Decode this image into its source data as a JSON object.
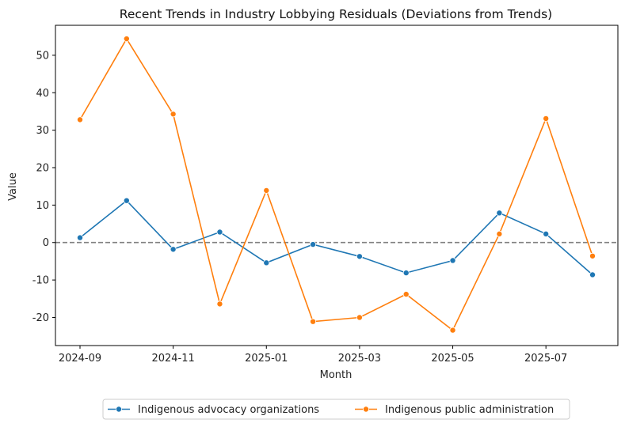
{
  "chart_data": {
    "type": "line",
    "title": "Recent Trends in Industry Lobbying Residuals (Deviations from Trends)",
    "xlabel": "Month",
    "ylabel": "Value",
    "x": [
      "2024-09",
      "2024-10",
      "2024-11",
      "2024-12",
      "2025-01",
      "2025-02",
      "2025-03",
      "2025-04",
      "2025-05",
      "2025-06",
      "2025-07",
      "2025-08"
    ],
    "xticks": [
      "2024-09",
      "2024-11",
      "2025-01",
      "2025-03",
      "2025-05",
      "2025-07"
    ],
    "yticks": [
      -20,
      -10,
      0,
      10,
      20,
      30,
      40,
      50
    ],
    "ylim": [
      -27.5,
      58
    ],
    "reference_line": 0,
    "legend_position": "bottom-center",
    "series": [
      {
        "name": "Indigenous advocacy organizations",
        "color": "#1f77b4",
        "values": [
          1.3,
          11.2,
          -1.8,
          2.8,
          -5.4,
          -0.5,
          -3.7,
          -8.1,
          -4.8,
          7.9,
          2.3,
          -8.6
        ]
      },
      {
        "name": "Indigenous public administration",
        "color": "#ff7f0e",
        "values": [
          32.8,
          54.4,
          34.3,
          -16.4,
          13.9,
          -21.1,
          -20.0,
          -13.8,
          -23.4,
          2.3,
          33.1,
          -3.6
        ]
      }
    ]
  }
}
